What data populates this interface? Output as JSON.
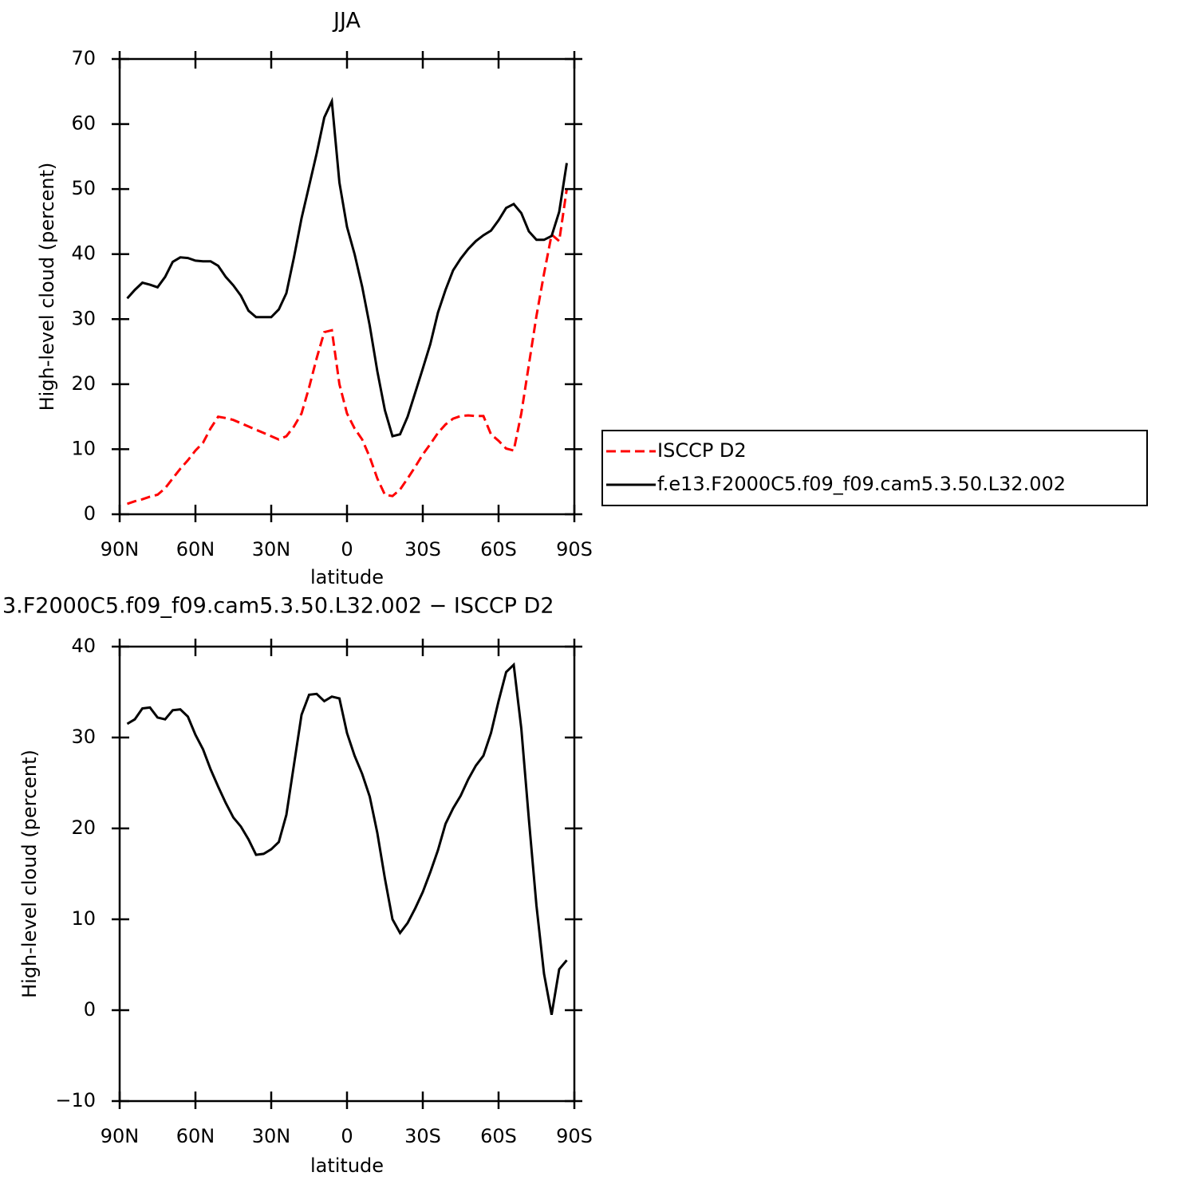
{
  "chart_data": [
    {
      "type": "line",
      "title": "JJA",
      "xlabel": "latitude",
      "ylabel": "High-level cloud (percent)",
      "xlim": [
        90,
        -90
      ],
      "ylim": [
        0,
        70
      ],
      "xticks": [
        {
          "value": 90,
          "label": "90N"
        },
        {
          "value": 60,
          "label": "60N"
        },
        {
          "value": 30,
          "label": "30N"
        },
        0,
        {
          "value": -30,
          "label": "30S"
        },
        {
          "value": -60,
          "label": "60S"
        },
        {
          "value": -90,
          "label": "90S"
        }
      ],
      "yticks": [
        0,
        10,
        20,
        30,
        40,
        50,
        60,
        70
      ],
      "legend": "right",
      "x": [
        87,
        84,
        81,
        78,
        75,
        72,
        69,
        66,
        63,
        60,
        57,
        54,
        51,
        48,
        45,
        42,
        39,
        36,
        33,
        30,
        27,
        24,
        21,
        18,
        15,
        12,
        9,
        6,
        3,
        0,
        -3,
        -6,
        -9,
        -12,
        -15,
        -18,
        -21,
        -24,
        -27,
        -30,
        -33,
        -36,
        -39,
        -42,
        -45,
        -48,
        -51,
        -54,
        -57,
        -60,
        -63,
        -66,
        -69,
        -72,
        -75,
        -78,
        -81,
        -84,
        -87
      ],
      "series": [
        {
          "name": "ISCCP D2",
          "color": "#ff0000",
          "linestyle": "dashed",
          "values": [
            1.6,
            2.0,
            2.3,
            2.7,
            3.0,
            4.0,
            5.5,
            7.0,
            8.3,
            9.8,
            11,
            13.2,
            15,
            14.8,
            14.5,
            14.0,
            13.5,
            13,
            12.5,
            12,
            11.5,
            12,
            13.5,
            15.5,
            19.5,
            24,
            28,
            28.3,
            20,
            15.5,
            13.2,
            11.5,
            8.8,
            5.5,
            3,
            2.8,
            3.8,
            5.5,
            7.3,
            9.2,
            10.8,
            12.5,
            13.8,
            14.7,
            15.1,
            15.2,
            15.1,
            15.1,
            12.3,
            11.3,
            10.1,
            9.8,
            15.5,
            23,
            30.5,
            37,
            43,
            42,
            50
          ]
        },
        {
          "name": "f.e13.F2000C5.f09_f09.cam5.3.50.L32.002",
          "color": "#000000",
          "linestyle": "solid",
          "values": [
            33.2,
            34.5,
            35.6,
            35.3,
            34.9,
            36.5,
            38.8,
            39.5,
            39.4,
            39.0,
            38.9,
            38.9,
            38.2,
            36.5,
            35.2,
            33.6,
            31.3,
            30.3,
            30.3,
            30.3,
            31.5,
            34,
            39.5,
            45.5,
            50.5,
            55.5,
            61,
            63.5,
            51,
            44.2,
            40,
            35,
            29,
            22,
            16,
            12,
            12.3,
            15,
            18.7,
            22.4,
            26.2,
            31,
            34.5,
            37.5,
            39.3,
            40.8,
            42,
            42.9,
            43.6,
            45.2,
            47.1,
            47.7,
            46.3,
            43.5,
            42.2,
            42.2,
            42.8,
            46.5,
            54
          ]
        }
      ]
    },
    {
      "type": "line",
      "title": "3.F2000C5.f09_f09.cam5.3.50.L32.002 − ISCCP D2",
      "xlabel": "latitude",
      "ylabel": "High-level cloud (percent)",
      "xlim": [
        90,
        -90
      ],
      "ylim": [
        -10,
        40
      ],
      "xticks": [
        {
          "value": 90,
          "label": "90N"
        },
        {
          "value": 60,
          "label": "60N"
        },
        {
          "value": 30,
          "label": "30N"
        },
        0,
        {
          "value": -30,
          "label": "30S"
        },
        {
          "value": -60,
          "label": "60S"
        },
        {
          "value": -90,
          "label": "90S"
        }
      ],
      "yticks": [
        {
          "value": -10,
          "label": "−10"
        },
        0,
        10,
        20,
        30,
        40
      ],
      "x": [
        87,
        84,
        81,
        78,
        75,
        72,
        69,
        66,
        63,
        60,
        57,
        54,
        51,
        48,
        45,
        42,
        39,
        36,
        33,
        30,
        27,
        24,
        21,
        18,
        15,
        12,
        9,
        6,
        3,
        0,
        -3,
        -6,
        -9,
        -12,
        -15,
        -18,
        -21,
        -24,
        -27,
        -30,
        -33,
        -36,
        -39,
        -42,
        -45,
        -48,
        -51,
        -54,
        -57,
        -60,
        -63,
        -66,
        -69,
        -72,
        -75,
        -78,
        -81,
        -84,
        -87
      ],
      "series": [
        {
          "color": "#000000",
          "linestyle": "solid",
          "values": [
            31.5,
            32,
            33.2,
            33.3,
            32.2,
            32,
            33,
            33.1,
            32.3,
            30.3,
            28.7,
            26.5,
            24.6,
            22.8,
            21.2,
            20.2,
            18.8,
            17.1,
            17.2,
            17.7,
            18.5,
            21.5,
            27,
            32.5,
            34.7,
            34.8,
            34,
            34.5,
            34.3,
            30.5,
            28,
            26,
            23.5,
            19.5,
            14.5,
            10,
            8.5,
            9.6,
            11.2,
            13,
            15.2,
            17.6,
            20.5,
            22.2,
            23.6,
            25.4,
            26.9,
            28,
            30.5,
            34,
            37.2,
            38,
            31,
            21,
            11.5,
            4,
            -0.5,
            4.5,
            5.5
          ]
        }
      ]
    }
  ]
}
